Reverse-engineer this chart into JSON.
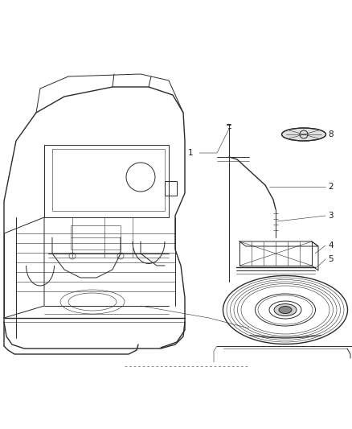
{
  "background_color": "#ffffff",
  "line_color": "#2a2a2a",
  "label_color": "#1a1a1a",
  "fig_width": 4.38,
  "fig_height": 5.33,
  "dpi": 100,
  "border_color": "#cccccc",
  "label_fontsize": 7.5,
  "img_extent": [
    0,
    438,
    0,
    533
  ]
}
